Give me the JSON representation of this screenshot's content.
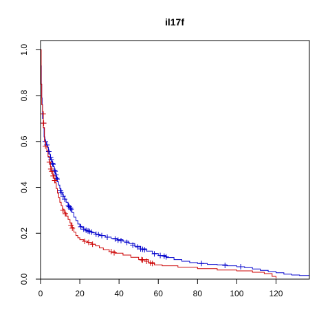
{
  "chart_data": {
    "type": "line",
    "subtype": "kaplan-meier",
    "title": "il17f",
    "xlabel": "",
    "ylabel": "",
    "xlim": [
      0,
      137
    ],
    "ylim": [
      0,
      1.04
    ],
    "x_ticks": [
      0,
      20,
      40,
      60,
      80,
      100,
      120
    ],
    "y_ticks": [
      0.0,
      0.2,
      0.4,
      0.6,
      0.8,
      1.0
    ],
    "x_tick_labels": [
      "0",
      "20",
      "40",
      "60",
      "80",
      "100",
      "120"
    ],
    "y_tick_labels": [
      "0.0",
      "0.2",
      "0.4",
      "0.6",
      "0.8",
      "1.0"
    ],
    "grid": false,
    "legend": "none",
    "series": [
      {
        "color": "#0000cc",
        "points": [
          [
            0,
            1.0
          ],
          [
            0.2,
            0.93
          ],
          [
            0.4,
            0.85
          ],
          [
            0.6,
            0.79
          ],
          [
            0.8,
            0.76
          ],
          [
            1,
            0.7
          ],
          [
            1.4,
            0.66
          ],
          [
            1.8,
            0.62
          ],
          [
            2.2,
            0.605
          ],
          [
            2.6,
            0.595
          ],
          [
            3,
            0.585
          ],
          [
            3.5,
            0.575
          ],
          [
            4,
            0.56
          ],
          [
            4.5,
            0.545
          ],
          [
            5,
            0.53
          ],
          [
            5.5,
            0.515
          ],
          [
            6,
            0.505
          ],
          [
            6.5,
            0.49
          ],
          [
            7,
            0.475
          ],
          [
            7.5,
            0.46
          ],
          [
            8,
            0.445
          ],
          [
            8.6,
            0.425
          ],
          [
            9.2,
            0.41
          ],
          [
            9.8,
            0.395
          ],
          [
            10.4,
            0.38
          ],
          [
            11,
            0.37
          ],
          [
            11.6,
            0.36
          ],
          [
            12.2,
            0.35
          ],
          [
            13,
            0.335
          ],
          [
            14,
            0.32
          ],
          [
            15,
            0.31
          ],
          [
            16,
            0.29
          ],
          [
            17,
            0.27
          ],
          [
            18,
            0.255
          ],
          [
            19,
            0.24
          ],
          [
            20,
            0.23
          ],
          [
            21,
            0.225
          ],
          [
            22,
            0.218
          ],
          [
            23,
            0.213
          ],
          [
            24,
            0.208
          ],
          [
            26,
            0.202
          ],
          [
            28,
            0.196
          ],
          [
            30,
            0.19
          ],
          [
            33,
            0.183
          ],
          [
            36,
            0.177
          ],
          [
            39,
            0.172
          ],
          [
            42,
            0.165
          ],
          [
            45,
            0.155
          ],
          [
            48,
            0.143
          ],
          [
            51,
            0.132
          ],
          [
            54,
            0.122
          ],
          [
            57,
            0.112
          ],
          [
            60,
            0.103
          ],
          [
            64,
            0.094
          ],
          [
            68,
            0.085
          ],
          [
            72,
            0.078
          ],
          [
            76,
            0.072
          ],
          [
            80,
            0.068
          ],
          [
            85,
            0.064
          ],
          [
            90,
            0.062
          ],
          [
            95,
            0.058
          ],
          [
            100,
            0.054
          ],
          [
            104,
            0.05
          ],
          [
            108,
            0.044
          ],
          [
            112,
            0.038
          ],
          [
            116,
            0.033
          ],
          [
            120,
            0.028
          ],
          [
            124,
            0.022
          ],
          [
            128,
            0.018
          ],
          [
            132,
            0.016
          ],
          [
            137,
            0.016
          ]
        ],
        "censor": [
          [
            1.5,
            0.68
          ],
          [
            2.4,
            0.6
          ],
          [
            3.2,
            0.585
          ],
          [
            4.2,
            0.556
          ],
          [
            5.1,
            0.53
          ],
          [
            5.4,
            0.52
          ],
          [
            6.1,
            0.505
          ],
          [
            6.3,
            0.5
          ],
          [
            7.1,
            0.475
          ],
          [
            7.4,
            0.47
          ],
          [
            7.8,
            0.455
          ],
          [
            8.2,
            0.44
          ],
          [
            8.4,
            0.435
          ],
          [
            10.1,
            0.385
          ],
          [
            10.5,
            0.378
          ],
          [
            11.5,
            0.362
          ],
          [
            12.3,
            0.348
          ],
          [
            14.2,
            0.32
          ],
          [
            14.6,
            0.316
          ],
          [
            15.2,
            0.31
          ],
          [
            15.5,
            0.305
          ],
          [
            20.5,
            0.228
          ],
          [
            22,
            0.218
          ],
          [
            23.2,
            0.213
          ],
          [
            24.2,
            0.21
          ],
          [
            25,
            0.208
          ],
          [
            26,
            0.205
          ],
          [
            28.3,
            0.196
          ],
          [
            29.5,
            0.194
          ],
          [
            31.2,
            0.19
          ],
          [
            34,
            0.183
          ],
          [
            38,
            0.175
          ],
          [
            39.5,
            0.17
          ],
          [
            41,
            0.168
          ],
          [
            44,
            0.16
          ],
          [
            47,
            0.148
          ],
          [
            49.5,
            0.14
          ],
          [
            51,
            0.132
          ],
          [
            52,
            0.13
          ],
          [
            53,
            0.128
          ],
          [
            58,
            0.11
          ],
          [
            61,
            0.103
          ],
          [
            63,
            0.1
          ],
          [
            64,
            0.097
          ],
          [
            82,
            0.068
          ],
          [
            94,
            0.06
          ],
          [
            102,
            0.054
          ]
        ]
      },
      {
        "color": "#cc0000",
        "points": [
          [
            0,
            1.0
          ],
          [
            0.3,
            0.85
          ],
          [
            0.6,
            0.76
          ],
          [
            1,
            0.73
          ],
          [
            1.4,
            0.66
          ],
          [
            2,
            0.6
          ],
          [
            2.6,
            0.58
          ],
          [
            3.2,
            0.56
          ],
          [
            3.8,
            0.535
          ],
          [
            4.4,
            0.51
          ],
          [
            5,
            0.49
          ],
          [
            5.6,
            0.47
          ],
          [
            6.2,
            0.455
          ],
          [
            6.8,
            0.44
          ],
          [
            7.4,
            0.42
          ],
          [
            8,
            0.395
          ],
          [
            8.6,
            0.375
          ],
          [
            9.2,
            0.355
          ],
          [
            9.8,
            0.335
          ],
          [
            10.5,
            0.32
          ],
          [
            11.2,
            0.305
          ],
          [
            12,
            0.29
          ],
          [
            13,
            0.275
          ],
          [
            14,
            0.26
          ],
          [
            15,
            0.245
          ],
          [
            16,
            0.225
          ],
          [
            17,
            0.205
          ],
          [
            18,
            0.19
          ],
          [
            19,
            0.18
          ],
          [
            20,
            0.172
          ],
          [
            22,
            0.165
          ],
          [
            24,
            0.16
          ],
          [
            26,
            0.152
          ],
          [
            28,
            0.145
          ],
          [
            30,
            0.136
          ],
          [
            32,
            0.128
          ],
          [
            35,
            0.12
          ],
          [
            38,
            0.113
          ],
          [
            42,
            0.105
          ],
          [
            46,
            0.095
          ],
          [
            50,
            0.085
          ],
          [
            55,
            0.072
          ],
          [
            58,
            0.062
          ],
          [
            62,
            0.058
          ],
          [
            70,
            0.052
          ],
          [
            80,
            0.046
          ],
          [
            90,
            0.04
          ],
          [
            100,
            0.036
          ],
          [
            108,
            0.03
          ],
          [
            114,
            0.024
          ],
          [
            118,
            0.012
          ],
          [
            120,
            0.003
          ]
        ],
        "censor": [
          [
            1.3,
            0.72
          ],
          [
            1.6,
            0.68
          ],
          [
            2.5,
            0.58
          ],
          [
            4.5,
            0.51
          ],
          [
            5.2,
            0.48
          ],
          [
            5.6,
            0.47
          ],
          [
            6.4,
            0.45
          ],
          [
            7.2,
            0.43
          ],
          [
            11.4,
            0.3
          ],
          [
            12.6,
            0.285
          ],
          [
            15.5,
            0.235
          ],
          [
            16.2,
            0.222
          ],
          [
            22.5,
            0.165
          ],
          [
            24.5,
            0.16
          ],
          [
            26.5,
            0.152
          ],
          [
            36,
            0.12
          ],
          [
            37.5,
            0.115
          ],
          [
            51.5,
            0.085
          ],
          [
            52,
            0.083
          ],
          [
            54,
            0.078
          ],
          [
            56,
            0.07
          ],
          [
            57,
            0.068
          ]
        ]
      }
    ]
  }
}
